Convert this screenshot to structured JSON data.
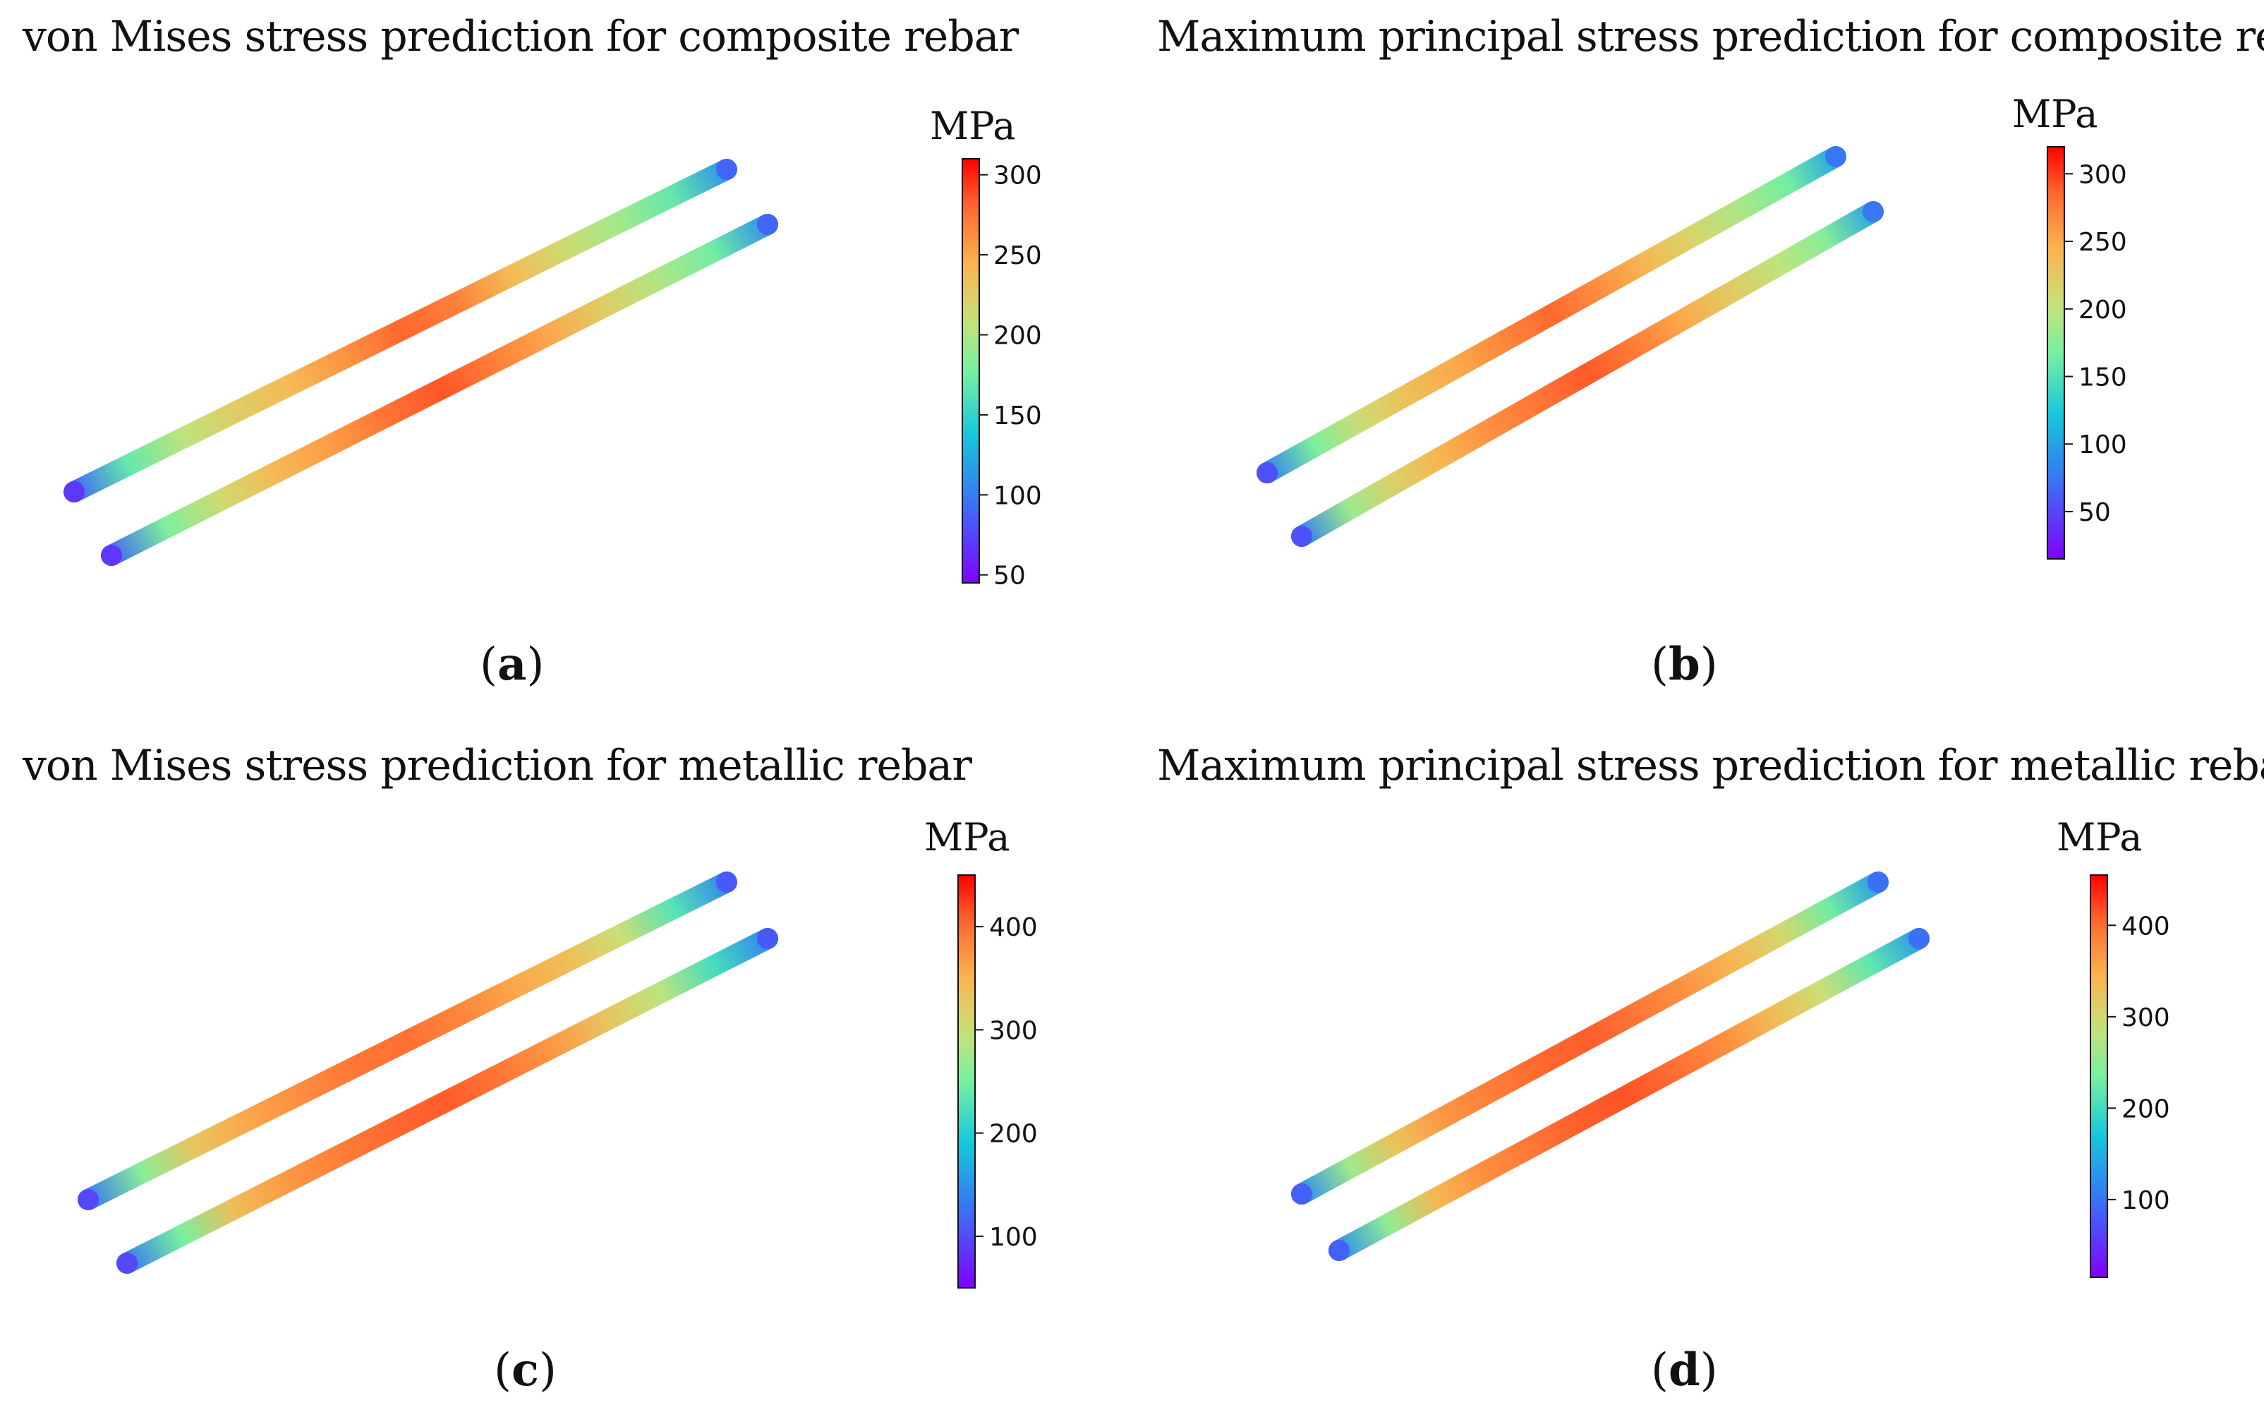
{
  "panels": [
    {
      "id": "a",
      "title": "von Mises stress prediction for composite rebar",
      "caption_letter": "a",
      "unit": "MPa",
      "colorbar": {
        "min": 45,
        "max": 310,
        "ticks": [
          50,
          100,
          150,
          200,
          250,
          300
        ]
      },
      "rebars": [
        {
          "name": "upper",
          "stress_profile": [
            90,
            170,
            205,
            225,
            240,
            260,
            280,
            270,
            240,
            215,
            195,
            170,
            110
          ]
        },
        {
          "name": "lower",
          "stress_profile": [
            90,
            180,
            215,
            240,
            255,
            275,
            285,
            270,
            250,
            225,
            200,
            175,
            110
          ]
        }
      ]
    },
    {
      "id": "b",
      "title": "Maximum principal stress prediction for composite rebar",
      "caption_letter": "b",
      "unit": "MPa",
      "colorbar": {
        "min": 15,
        "max": 320,
        "ticks": [
          50,
          100,
          150,
          200,
          250,
          300
        ]
      },
      "rebars": [
        {
          "name": "upper",
          "stress_profile": [
            80,
            170,
            210,
            235,
            250,
            270,
            285,
            265,
            240,
            215,
            190,
            165,
            100
          ]
        },
        {
          "name": "lower",
          "stress_profile": [
            80,
            185,
            220,
            245,
            265,
            280,
            290,
            275,
            250,
            225,
            200,
            175,
            100
          ]
        }
      ]
    },
    {
      "id": "c",
      "title": "von Mises stress prediction for metallic rebar",
      "caption_letter": "c",
      "unit": "MPa",
      "colorbar": {
        "min": 50,
        "max": 450,
        "ticks": [
          100,
          200,
          300,
          400
        ]
      },
      "rebars": [
        {
          "name": "upper",
          "stress_profile": [
            130,
            260,
            330,
            360,
            380,
            395,
            400,
            385,
            360,
            340,
            300,
            230,
            140
          ]
        },
        {
          "name": "lower",
          "stress_profile": [
            130,
            250,
            340,
            370,
            390,
            405,
            410,
            395,
            370,
            330,
            290,
            220,
            140
          ]
        }
      ]
    },
    {
      "id": "d",
      "title": "Maximum principal stress prediction for metallic rebar",
      "caption_letter": "d",
      "unit": "MPa",
      "colorbar": {
        "min": 15,
        "max": 455,
        "ticks": [
          100,
          200,
          300,
          400
        ]
      },
      "rebars": [
        {
          "name": "upper",
          "stress_profile": [
            120,
            260,
            330,
            370,
            390,
            405,
            410,
            395,
            370,
            340,
            300,
            230,
            130
          ]
        },
        {
          "name": "lower",
          "stress_profile": [
            120,
            250,
            340,
            375,
            395,
            410,
            415,
            400,
            375,
            335,
            290,
            220,
            130
          ]
        }
      ]
    }
  ],
  "colormap": "rainbow"
}
